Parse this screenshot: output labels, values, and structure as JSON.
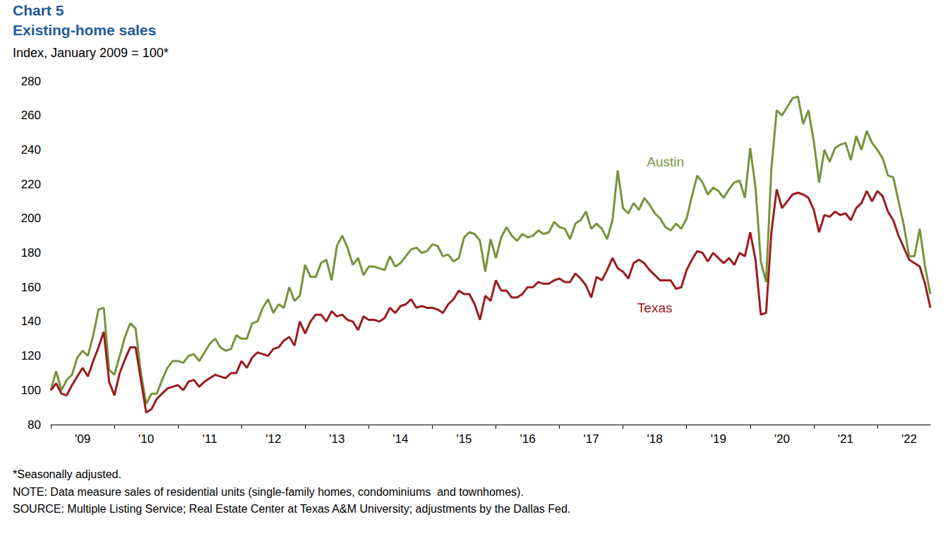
{
  "chart_data": {
    "type": "line",
    "title": "Chart 5",
    "subtitle": "Existing-home sales",
    "ylabel": "Index, January 2009 = 100*",
    "notes": [
      "*Seasonally adjusted.",
      "NOTE: Data measure sales of residential units (single-family homes, condominiums  and townhomes).",
      "SOURCE: Multiple Listing Service; Real Estate Center at Texas A&M University; adjustments by the Dallas Fed."
    ],
    "categories": [
      null,
      null,
      null,
      null,
      null,
      null,
      "'09",
      null,
      null,
      null,
      null,
      null,
      null,
      null,
      null,
      null,
      null,
      null,
      "'10",
      null,
      null,
      null,
      null,
      null,
      null,
      null,
      null,
      null,
      null,
      null,
      "'11",
      null,
      null,
      null,
      null,
      null,
      null,
      null,
      null,
      null,
      null,
      null,
      "'12",
      null,
      null,
      null,
      null,
      null,
      null,
      null,
      null,
      null,
      null,
      null,
      "'13",
      null,
      null,
      null,
      null,
      null,
      null,
      null,
      null,
      null,
      null,
      null,
      "'14",
      null,
      null,
      null,
      null,
      null,
      null,
      null,
      null,
      null,
      null,
      null,
      "'15",
      null,
      null,
      null,
      null,
      null,
      null,
      null,
      null,
      null,
      null,
      null,
      "'16",
      null,
      null,
      null,
      null,
      null,
      null,
      null,
      null,
      null,
      null,
      null,
      "'17",
      null,
      null,
      null,
      null,
      null,
      null,
      null,
      null,
      null,
      null,
      null,
      "'18",
      null,
      null,
      null,
      null,
      null,
      null,
      null,
      null,
      null,
      null,
      null,
      "'19",
      null,
      null,
      null,
      null,
      null,
      null,
      null,
      null,
      null,
      null,
      null,
      "'20",
      null,
      null,
      null,
      null,
      null,
      null,
      null,
      null,
      null,
      null,
      null,
      "'21",
      null,
      null,
      null,
      null,
      null,
      null,
      null,
      null,
      null,
      null,
      null,
      "'22",
      null,
      null,
      null,
      null
    ],
    "series": [
      {
        "name": "Austin",
        "color": "#77933c",
        "values": [
          100,
          111,
          100,
          106,
          109,
          119,
          123,
          120,
          132,
          147,
          148,
          112,
          109,
          120,
          131,
          139,
          136,
          110,
          92,
          98,
          98,
          106,
          113,
          117,
          117,
          116,
          120,
          121,
          117,
          122,
          127,
          130,
          125,
          123,
          124,
          132,
          130,
          130,
          139,
          140,
          148,
          153,
          145,
          150,
          148,
          160,
          152,
          155,
          173,
          166,
          166,
          174,
          176,
          164,
          184,
          190,
          183,
          173,
          177,
          167,
          172,
          172,
          171,
          170,
          178,
          172,
          174,
          178,
          182,
          183,
          180,
          181,
          185,
          184,
          178,
          179,
          175,
          177,
          189,
          192,
          191,
          187,
          169,
          188,
          177,
          189,
          195,
          190,
          187,
          191,
          189,
          190,
          193,
          191,
          192,
          198,
          195,
          194,
          188,
          197,
          199,
          204,
          194,
          197,
          194,
          188,
          199,
          228,
          206,
          203,
          209,
          205,
          212,
          208,
          203,
          200,
          195,
          193,
          197,
          194,
          200,
          213,
          225,
          221,
          214,
          218,
          216,
          212,
          217,
          221,
          222,
          212,
          241,
          218,
          175,
          163,
          229,
          263,
          260,
          265,
          270,
          271,
          255,
          263,
          245,
          221,
          240,
          233,
          241,
          243,
          244,
          234,
          248,
          240,
          251,
          244,
          240,
          235,
          225,
          224,
          210,
          196,
          178,
          178,
          194,
          172,
          156
        ]
      },
      {
        "name": "Texas",
        "color": "#9b1c1f",
        "values": [
          100,
          104,
          98,
          97,
          103,
          108,
          113,
          108,
          117,
          125,
          134,
          105,
          97,
          110,
          118,
          125,
          125,
          106,
          87,
          89,
          95,
          98,
          101,
          102,
          103,
          100,
          105,
          106,
          102,
          105,
          107,
          109,
          108,
          107,
          110,
          110,
          117,
          113,
          119,
          122,
          121,
          120,
          124,
          125,
          129,
          131,
          126,
          140,
          133,
          140,
          144,
          144,
          140,
          146,
          143,
          144,
          141,
          140,
          135,
          143,
          141,
          141,
          140,
          142,
          148,
          145,
          149,
          150,
          153,
          148,
          149,
          148,
          148,
          147,
          145,
          150,
          153,
          158,
          156,
          156,
          150,
          141,
          155,
          152,
          164,
          158,
          158,
          154,
          154,
          156,
          160,
          160,
          163,
          162,
          162,
          164,
          165,
          163,
          163,
          168,
          165,
          161,
          154,
          166,
          164,
          170,
          177,
          171,
          169,
          165,
          174,
          176,
          174,
          170,
          167,
          164,
          164,
          164,
          159,
          160,
          170,
          176,
          181,
          180,
          175,
          180,
          177,
          174,
          177,
          173,
          180,
          178,
          192,
          176,
          144,
          145,
          192,
          217,
          206,
          210,
          214,
          215,
          214,
          212,
          205,
          192,
          202,
          201,
          204,
          202,
          203,
          199,
          206,
          209,
          216,
          210,
          216,
          213,
          204,
          199,
          190,
          183,
          176,
          174,
          172,
          162,
          148
        ]
      }
    ],
    "ylim": [
      80,
      280
    ],
    "yticks": [
      80,
      100,
      120,
      140,
      160,
      180,
      200,
      220,
      240,
      260,
      280
    ],
    "grid": false
  }
}
